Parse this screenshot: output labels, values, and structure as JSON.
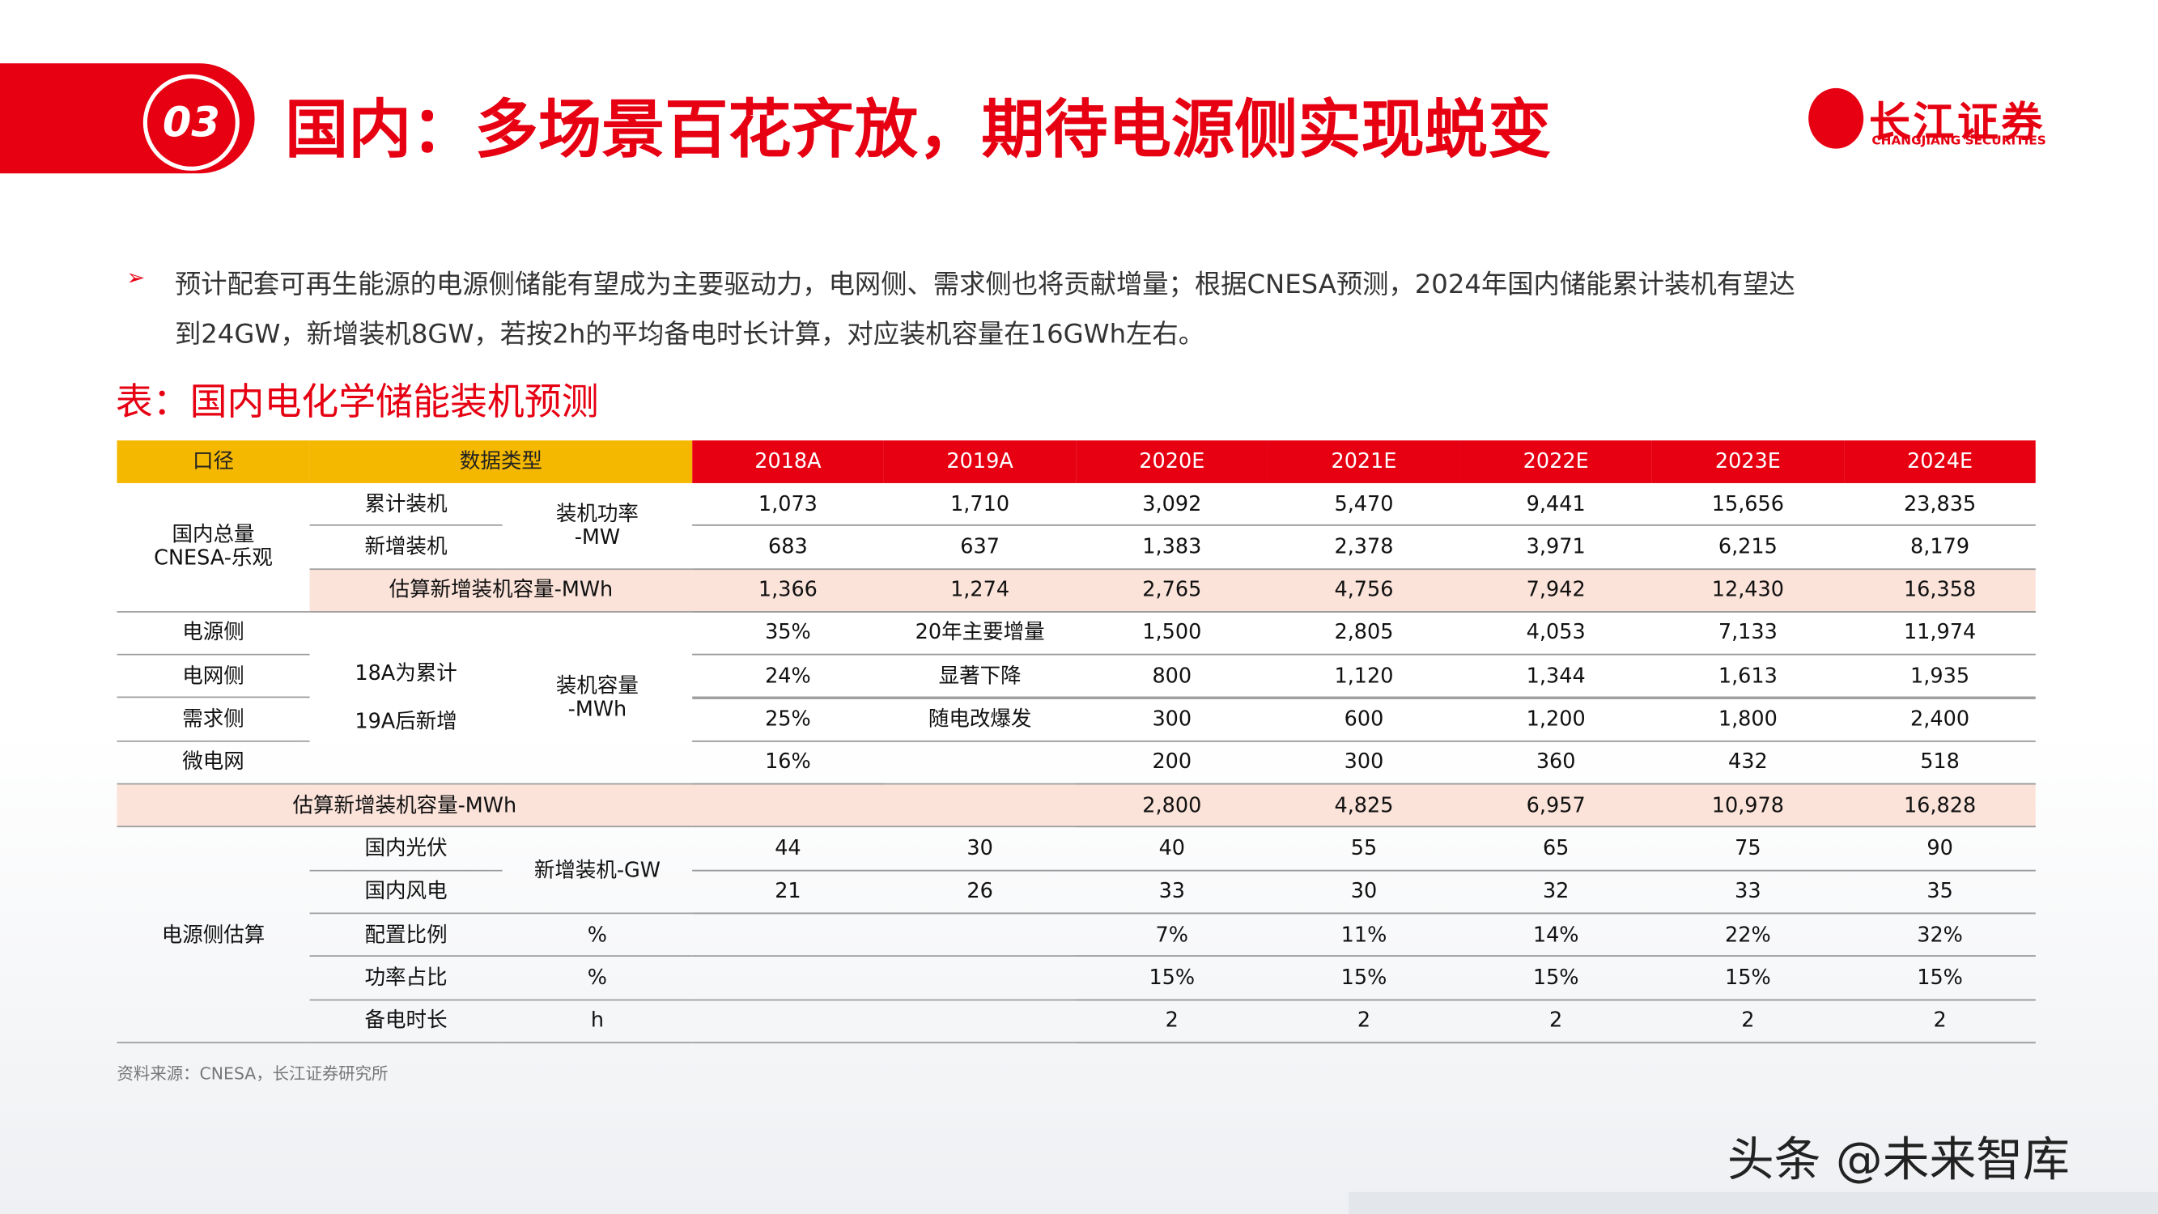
{
  "header": {
    "number": "03",
    "title": "国内：多场景百花齐放，期待电源侧实现蜕变",
    "logo_cn": "长江证券",
    "logo_en": "CHANGJIANG SECURITIES"
  },
  "bullet": "预计配套可再生能源的电源侧储能有望成为主要驱动力，电网侧、需求侧也将贡献增量；根据CNESA预测，2024年国内储能累计装机有望达到24GW，新增装机8GW，若按2h的平均备电时长计算，对应装机容量在16GWh左右。",
  "table_title": "表：国内电化学储能装机预测",
  "table": {
    "header": [
      "口径",
      "数据类型",
      "2018A",
      "2019A",
      "2020E",
      "2021E",
      "2022E",
      "2023E",
      "2024E"
    ],
    "rows": [
      [
        "国内总量\nCNESA-乐观",
        "累计装机",
        "装机功率\n-MW",
        "1,073",
        "1,710",
        "3,092",
        "5,470",
        "9,441",
        "15,656",
        "23,835"
      ],
      [
        "新增装机",
        "683",
        "637",
        "1,383",
        "2,378",
        "3,971",
        "6,215",
        "8,179"
      ],
      [
        "估算新增装机容量-MWh",
        "1,366",
        "1,274",
        "2,765",
        "4,756",
        "7,942",
        "12,430",
        "16,358"
      ],
      [
        "电源侧",
        "18A为累计\n\n19A后新增",
        "装机容量\n-MWh",
        "35%",
        "20年主要增量",
        "1,500",
        "2,805",
        "4,053",
        "7,133",
        "11,974"
      ],
      [
        "电网侧",
        "24%",
        "显著下降",
        "800",
        "1,120",
        "1,344",
        "1,613",
        "1,935"
      ],
      [
        "需求侧",
        "25%",
        "随电改爆发",
        "300",
        "600",
        "1,200",
        "1,800",
        "2,400"
      ],
      [
        "微电网",
        "16%",
        "200",
        "300",
        "360",
        "432",
        "518"
      ],
      [
        "估算新增装机容量-MWh",
        "2,800",
        "4,825",
        "6,957",
        "10,978",
        "16,828"
      ],
      [
        "电源侧估算",
        "国内光伏",
        "新增装机-GW",
        "44",
        "30",
        "40",
        "55",
        "65",
        "75",
        "90"
      ],
      [
        "国内风电",
        "21",
        "26",
        "33",
        "30",
        "32",
        "33",
        "35"
      ],
      [
        "配置比例",
        "%",
        "7%",
        "11%",
        "14%",
        "22%",
        "32%"
      ],
      [
        "功率占比",
        "%",
        "15%",
        "15%",
        "15%",
        "15%",
        "15%"
      ],
      [
        "备电时长",
        "h",
        "2",
        "2",
        "2",
        "2",
        "2"
      ]
    ]
  },
  "source": "资料来源：CNESA，长江证券研究所",
  "watermark": "头条 @未来智库"
}
